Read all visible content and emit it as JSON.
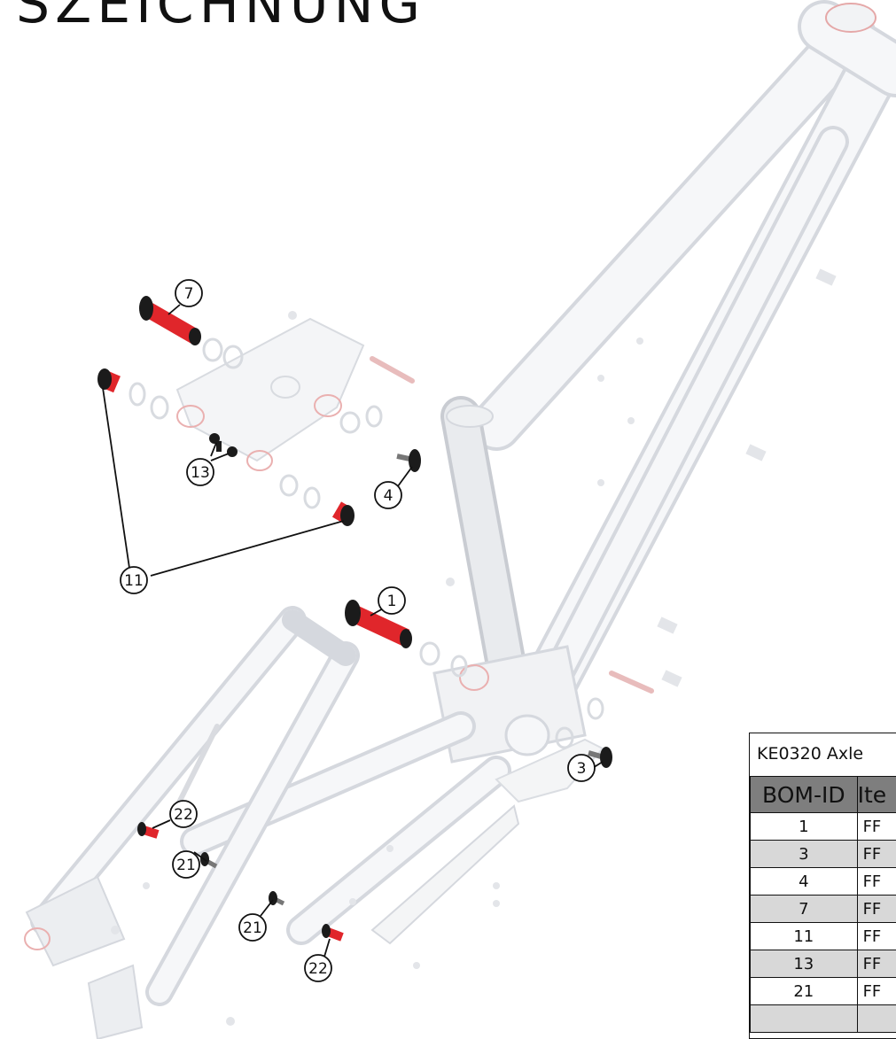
{
  "title": "SZEICHNUNG",
  "table_title": "KE0320  Axle",
  "table_headers": {
    "id": "BOM-ID",
    "item": "Ite"
  },
  "bom_rows": [
    {
      "id": "1",
      "item": "FF"
    },
    {
      "id": "3",
      "item": "FF"
    },
    {
      "id": "4",
      "item": "FF"
    },
    {
      "id": "7",
      "item": "FF"
    },
    {
      "id": "11",
      "item": "FF"
    },
    {
      "id": "13",
      "item": "FF"
    },
    {
      "id": "21",
      "item": "FF"
    },
    {
      "id": "",
      "item": ""
    }
  ],
  "callouts": {
    "c1": "1",
    "c3": "3",
    "c4": "4",
    "c7": "7",
    "c11": "11",
    "c13": "13",
    "c21a": "21",
    "c21b": "21",
    "c22a": "22",
    "c22b": "22"
  },
  "colors": {
    "frame": "#dcdfe4",
    "accent": "#e0262b",
    "part": "#1b1b1b"
  }
}
